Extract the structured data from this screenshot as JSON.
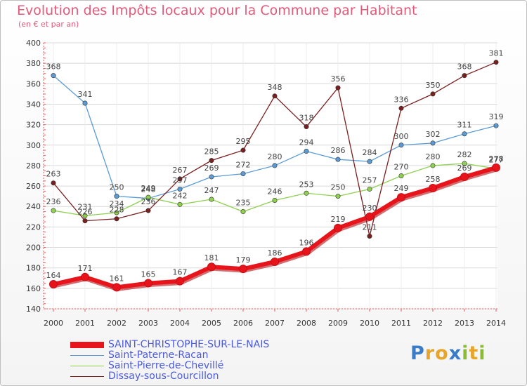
{
  "header": {
    "title": "Evolution des Impôts locaux pour la Commune par Habitant",
    "subtitle": "(en € et par an)"
  },
  "logo": {
    "text": "Proxiti",
    "colors": [
      "#3a7cc8",
      "#e7a52a",
      "#e7a52a",
      "#3a7cc8",
      "#8abd33",
      "#e7a52a",
      "#8abd33"
    ]
  },
  "chart_data": {
    "type": "line",
    "title": "Evolution des Impôts locaux pour la Commune par Habitant",
    "subtitle": "(en € et par an)",
    "xlabel": "",
    "ylabel": "",
    "categories": [
      "2000",
      "2001",
      "2002",
      "2003",
      "2004",
      "2005",
      "2006",
      "2007",
      "2008",
      "2009",
      "2010",
      "2011",
      "2012",
      "2013",
      "2014"
    ],
    "ylim": [
      140,
      400
    ],
    "yticks": [
      140,
      160,
      180,
      200,
      220,
      240,
      260,
      280,
      300,
      320,
      340,
      360,
      380,
      400
    ],
    "grid": true,
    "legend_position": "bottom-left",
    "series": [
      {
        "name": "SAINT-CHRISTOPHE-SUR-LE-NAIS",
        "color": "#e8141b",
        "emphasis": true,
        "values": [
          164,
          171,
          161,
          165,
          167,
          181,
          179,
          186,
          196,
          219,
          230,
          249,
          258,
          269,
          278
        ],
        "labels": [
          "164",
          "171",
          "161",
          "165",
          "167",
          "181",
          "179",
          "186",
          "196",
          "219",
          "230",
          "249",
          "258",
          "269",
          "278"
        ]
      },
      {
        "name": "Saint-Paterne-Racan",
        "color": "#5b9bd5",
        "values": [
          368,
          341,
          250,
          248,
          257,
          269,
          272,
          280,
          294,
          286,
          284,
          300,
          302,
          311,
          319
        ],
        "labels": [
          "368",
          "341",
          "250",
          "248",
          "257",
          "269",
          "272",
          "280",
          "294",
          "286",
          "284",
          "300",
          "302",
          "311",
          "319"
        ]
      },
      {
        "name": "Saint-Pierre-de-Chevillé",
        "color": "#8fd14f",
        "values": [
          236,
          231,
          234,
          249,
          242,
          247,
          235,
          246,
          253,
          250,
          257,
          270,
          280,
          282,
          277
        ],
        "labels": [
          "236",
          "231",
          "234",
          "249",
          "242",
          "247",
          "235",
          "246",
          "253",
          "250",
          "257",
          "270",
          "280",
          "282",
          "277"
        ]
      },
      {
        "name": "Dissay-sous-Courcillon",
        "color": "#7a1f1f",
        "values": [
          263,
          226,
          228,
          236,
          267,
          285,
          295,
          348,
          318,
          356,
          211,
          336,
          350,
          368,
          381
        ],
        "labels": [
          "263",
          "226",
          "228",
          "236",
          "267",
          "285",
          "295",
          "348",
          "318",
          "356",
          "211",
          "336",
          "350",
          "368",
          "381"
        ]
      }
    ]
  }
}
